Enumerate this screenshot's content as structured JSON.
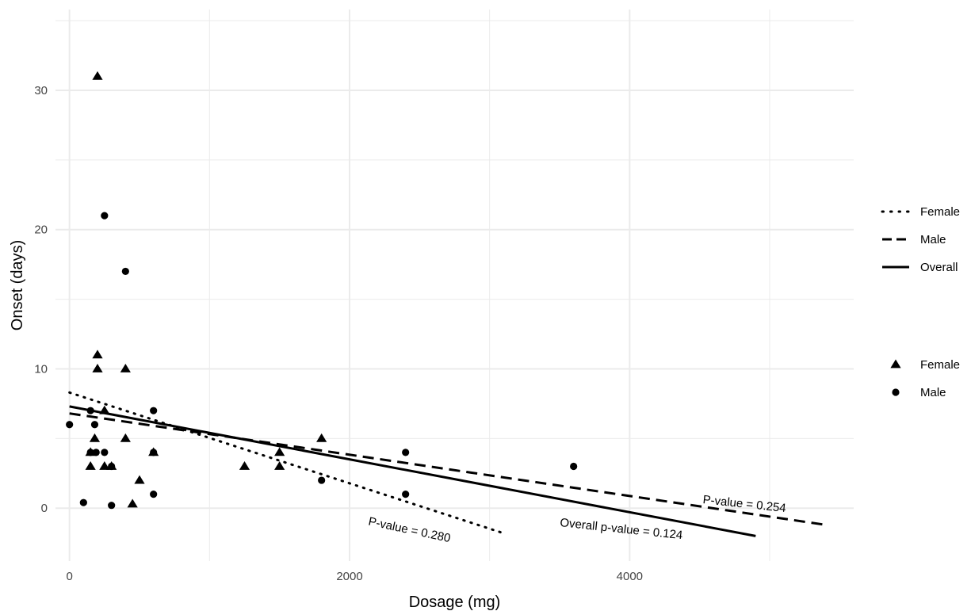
{
  "chart_data": {
    "type": "scatter",
    "xlabel": "Dosage (mg)",
    "ylabel": "Onset (days)",
    "xlim": [
      -100,
      5600
    ],
    "ylim": [
      -3.8,
      35.8
    ],
    "x_ticks": [
      0,
      2000,
      4000
    ],
    "y_ticks": [
      0,
      10,
      20,
      30
    ],
    "x_tick_labels": [
      "0",
      "2000",
      "4000"
    ],
    "y_tick_labels": [
      "0",
      "10",
      "20",
      "30"
    ],
    "grid": true,
    "background": "#ffffff",
    "grid_color": "#ebebeb",
    "series": [
      {
        "name": "Female",
        "marker": "triangle",
        "points": [
          [
            200,
            31
          ],
          [
            150,
            4
          ],
          [
            150,
            3
          ],
          [
            180,
            5
          ],
          [
            200,
            11
          ],
          [
            200,
            10
          ],
          [
            250,
            7
          ],
          [
            250,
            3
          ],
          [
            300,
            3
          ],
          [
            400,
            10
          ],
          [
            400,
            5
          ],
          [
            450,
            0.3
          ],
          [
            500,
            2
          ],
          [
            600,
            4
          ],
          [
            1250,
            3
          ],
          [
            1500,
            4
          ],
          [
            1500,
            3
          ],
          [
            1800,
            5
          ]
        ]
      },
      {
        "name": "Male",
        "marker": "circle",
        "points": [
          [
            0,
            6
          ],
          [
            100,
            0.4
          ],
          [
            150,
            7
          ],
          [
            150,
            4
          ],
          [
            180,
            6
          ],
          [
            190,
            4
          ],
          [
            250,
            21
          ],
          [
            250,
            4
          ],
          [
            300,
            3
          ],
          [
            300,
            0.2
          ],
          [
            400,
            17
          ],
          [
            600,
            7
          ],
          [
            600,
            4
          ],
          [
            600,
            1
          ],
          [
            1800,
            2
          ],
          [
            2400,
            4
          ],
          [
            2400,
            1
          ],
          [
            3600,
            3
          ]
        ]
      }
    ],
    "trend_lines": [
      {
        "name": "Female",
        "style": "dotted",
        "x": [
          0,
          3100
        ],
        "y": [
          8.3,
          -1.8
        ]
      },
      {
        "name": "Male",
        "style": "dashed",
        "x": [
          0,
          5400
        ],
        "y": [
          6.8,
          -1.2
        ]
      },
      {
        "name": "Overall",
        "style": "solid",
        "x": [
          0,
          4900
        ],
        "y": [
          7.3,
          -2.0
        ]
      }
    ],
    "annotations": [
      {
        "text": "P-value = 0.280",
        "x": 2130,
        "y": -1.2,
        "angle": 12
      },
      {
        "text": "Overall p-value = 0.124",
        "x": 3500,
        "y": -1.3,
        "angle": 6
      },
      {
        "text": "P-value = 0.254",
        "x": 4520,
        "y": 0.35,
        "angle": 6
      }
    ],
    "legends": [
      {
        "kind": "line",
        "placement": "right",
        "entries": [
          {
            "label": "Female",
            "style": "dotted"
          },
          {
            "label": "Male",
            "style": "dashed"
          },
          {
            "label": "Overall",
            "style": "solid"
          }
        ]
      },
      {
        "kind": "marker",
        "placement": "right",
        "entries": [
          {
            "label": "Female",
            "marker": "triangle"
          },
          {
            "label": "Male",
            "marker": "circle"
          }
        ]
      }
    ]
  }
}
